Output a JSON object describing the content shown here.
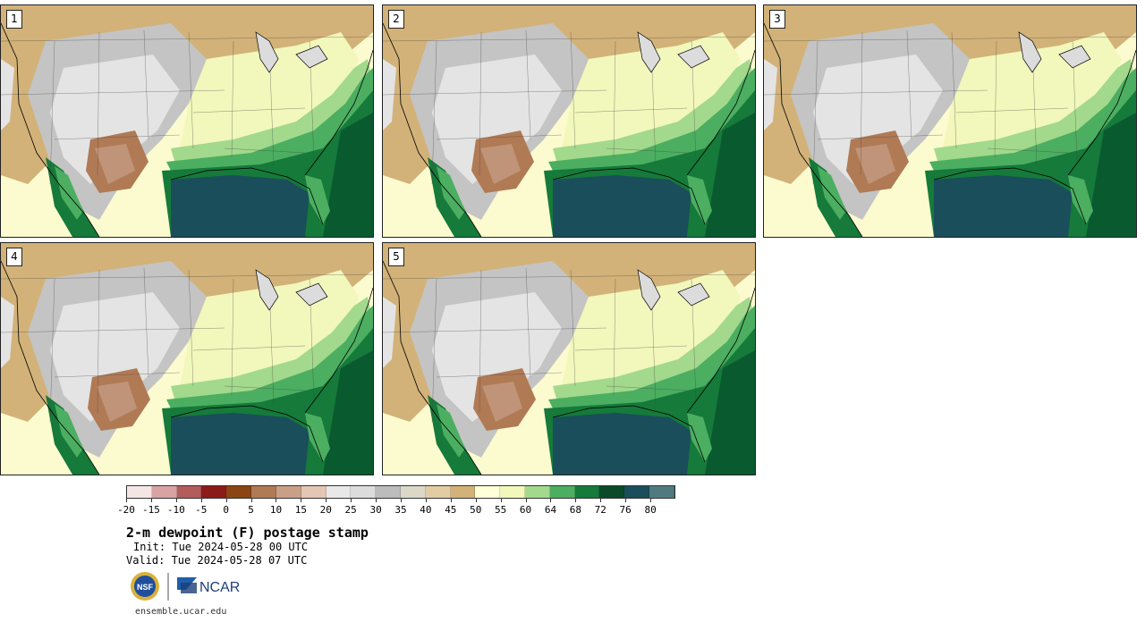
{
  "panels": [
    {
      "label": "1"
    },
    {
      "label": "2"
    },
    {
      "label": "3"
    },
    {
      "label": "4"
    },
    {
      "label": "5"
    }
  ],
  "colorbar": {
    "colors": [
      "#f5e6e6",
      "#d9a3a3",
      "#b35c5c",
      "#8c1a1a",
      "#8b4513",
      "#b07a55",
      "#c8a088",
      "#e3c6b3",
      "#e8e8e8",
      "#dcdcdc",
      "#bcbcbc",
      "#dcd8c8",
      "#e2cda3",
      "#d2b278",
      "#ffffd8",
      "#f2f7bc",
      "#a3d98c",
      "#4cae60",
      "#157a3a",
      "#0a4a28",
      "#1a4e5a",
      "#517a80"
    ],
    "tick_labels": [
      "-20",
      "-15",
      "-10",
      "-5",
      "0",
      "5",
      "10",
      "15",
      "20",
      "25",
      "30",
      "35",
      "40",
      "45",
      "50",
      "55",
      "60",
      "64",
      "68",
      "72",
      "76",
      "80"
    ]
  },
  "title": "2-m dewpoint (F) postage stamp",
  "init": "Init: Tue 2024-05-28 00 UTC",
  "valid": "Valid: Tue 2024-05-28 07 UTC",
  "site": "ensemble.ucar.edu",
  "logos": {
    "nsf": "NSF",
    "ncar": "NCAR"
  }
}
